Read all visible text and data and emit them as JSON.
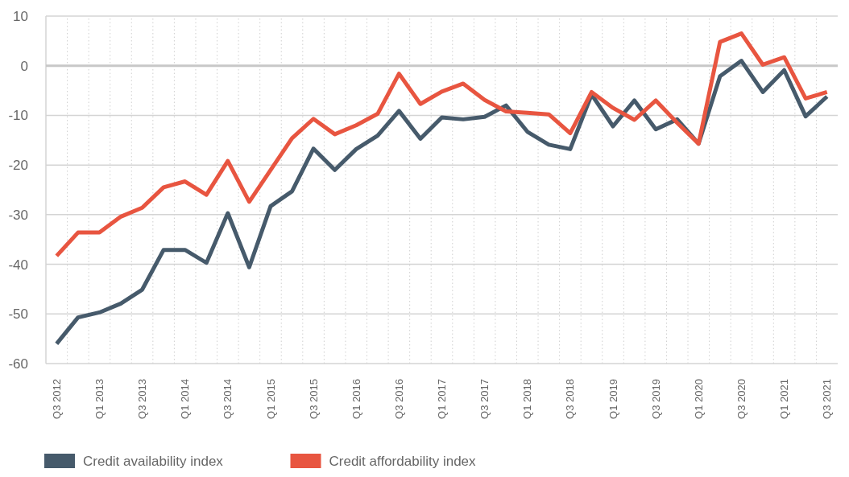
{
  "chart_data": {
    "type": "line",
    "categories": [
      "Q3 2012",
      null,
      "Q1 2013",
      null,
      "Q3 2013",
      null,
      "Q1 2014",
      null,
      "Q3 2014",
      null,
      "Q1 2015",
      null,
      "Q3 2015",
      null,
      "Q1 2016",
      null,
      "Q3 2016",
      null,
      "Q1 2017",
      null,
      "Q3 2017",
      null,
      "Q1 2018",
      null,
      "Q3 2018",
      null,
      "Q1 2019",
      null,
      "Q3 2019",
      null,
      "Q1 2020",
      null,
      "Q3 2020",
      null,
      "Q1 2021",
      null,
      "Q3 2021"
    ],
    "series": [
      {
        "name": "Credit availability index",
        "color": "#465a6b",
        "values": [
          -56,
          -50.7,
          -49.7,
          -47.9,
          -45.1,
          -37.1,
          -37.1,
          -39.7,
          -29.7,
          -40.6,
          -28.3,
          -25.3,
          -16.7,
          -21,
          -16.8,
          -14.1,
          -9.1,
          -14.7,
          -10.4,
          -10.8,
          -10.3,
          -8,
          -13.3,
          -15.9,
          -16.8,
          -5.8,
          -12.2,
          -7,
          -12.8,
          -10.8,
          -15.7,
          -2.1,
          1,
          -5.3,
          -0.9,
          -10.2,
          -6.2
        ]
      },
      {
        "name": "Credit affordability index",
        "color": "#e85540",
        "values": [
          -38.3,
          -33.6,
          -33.6,
          -30.4,
          -28.6,
          -24.5,
          -23.3,
          -26,
          -19.2,
          -27.4,
          -21,
          -14.6,
          -10.7,
          -13.8,
          -12,
          -9.7,
          -1.6,
          -7.7,
          -5.2,
          -3.6,
          -6.9,
          -9.2,
          -9.5,
          -9.8,
          -13.6,
          -5.3,
          -8.5,
          -10.9,
          -7,
          -11.5,
          -15.7,
          4.8,
          6.5,
          0.2,
          1.7,
          -6.6,
          -5.3
        ]
      }
    ],
    "ylim": [
      -60,
      10
    ],
    "yticks": [
      -60,
      -50,
      -40,
      -30,
      -20,
      -10,
      0,
      10
    ],
    "ref_lines": [
      {
        "axis": "y",
        "value": 0,
        "color": "#c8c8c8"
      }
    ],
    "grid": true,
    "legend": "bottom"
  }
}
